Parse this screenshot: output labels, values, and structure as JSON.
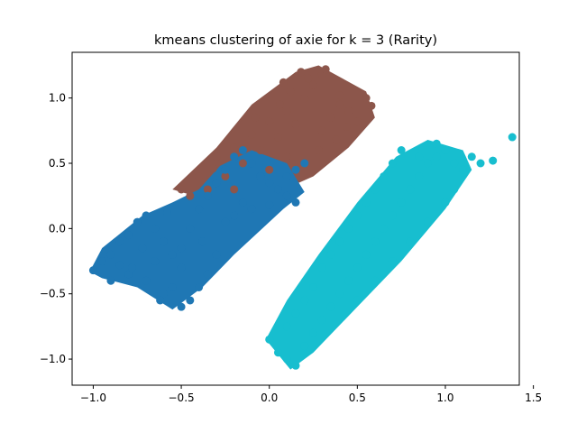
{
  "chart_data": {
    "type": "scatter",
    "title": "kmeans clustering of axie for k = 3 (Rarity)",
    "xlabel": "",
    "ylabel": "",
    "xlim": [
      -1.12,
      1.42
    ],
    "ylim": [
      -1.2,
      1.35
    ],
    "xticks": [
      -1.0,
      -0.5,
      0.0,
      0.5,
      1.0,
      1.5
    ],
    "xtick_labels": [
      "−1.0",
      "−0.5",
      "0.0",
      "0.5",
      "1.0",
      "1.5"
    ],
    "yticks": [
      -1.0,
      -0.5,
      0.0,
      0.5,
      1.0
    ],
    "ytick_labels": [
      "−1.0",
      "−0.5",
      "0.0",
      "0.5",
      "1.0"
    ],
    "grid": false,
    "legend": "none",
    "series": [
      {
        "color": "#8c564b",
        "cluster": 1,
        "points": [
          [
            -0.3,
            0.55
          ],
          [
            -0.2,
            0.62
          ],
          [
            -0.1,
            0.72
          ],
          [
            0.0,
            0.82
          ],
          [
            0.1,
            0.9
          ],
          [
            -0.25,
            0.4
          ],
          [
            -0.15,
            0.5
          ],
          [
            -0.05,
            0.6
          ],
          [
            0.05,
            0.7
          ],
          [
            0.15,
            0.8
          ],
          [
            -0.35,
            0.3
          ],
          [
            -0.45,
            0.25
          ],
          [
            0.2,
            1.0
          ],
          [
            0.25,
            1.1
          ],
          [
            0.3,
            0.75
          ],
          [
            0.35,
            0.85
          ],
          [
            0.4,
            0.95
          ],
          [
            0.45,
            0.9
          ],
          [
            0.5,
            0.82
          ],
          [
            0.55,
            1.0
          ],
          [
            0.18,
            1.2
          ],
          [
            0.22,
            1.15
          ],
          [
            0.12,
            1.05
          ],
          [
            0.3,
            1.18
          ],
          [
            0.4,
            1.02
          ],
          [
            -0.4,
            0.4
          ],
          [
            -0.2,
            0.3
          ],
          [
            0.0,
            0.45
          ],
          [
            0.1,
            0.55
          ],
          [
            0.28,
            0.6
          ],
          [
            0.38,
            0.68
          ],
          [
            0.48,
            0.72
          ],
          [
            0.58,
            0.94
          ],
          [
            -0.5,
            0.3
          ],
          [
            -0.32,
            0.46
          ],
          [
            0.06,
            0.95
          ],
          [
            -0.08,
            0.85
          ],
          [
            0.32,
            1.22
          ],
          [
            0.08,
            1.12
          ],
          [
            0.44,
            0.78
          ]
        ]
      },
      {
        "color": "#1f77b4",
        "cluster": 2,
        "points": [
          [
            -1.0,
            -0.32
          ],
          [
            -0.95,
            -0.25
          ],
          [
            -0.9,
            -0.2
          ],
          [
            -0.85,
            -0.1
          ],
          [
            -0.8,
            -0.05
          ],
          [
            -0.75,
            0.05
          ],
          [
            -0.7,
            0.1
          ],
          [
            -0.65,
            0.0
          ],
          [
            -0.6,
            -0.1
          ],
          [
            -0.55,
            -0.2
          ],
          [
            -0.5,
            -0.3
          ],
          [
            -0.55,
            -0.45
          ],
          [
            -0.5,
            -0.6
          ],
          [
            -0.6,
            -0.5
          ],
          [
            -0.7,
            -0.4
          ],
          [
            -0.8,
            -0.35
          ],
          [
            -0.9,
            -0.4
          ],
          [
            -0.45,
            0.0
          ],
          [
            -0.4,
            0.15
          ],
          [
            -0.35,
            0.25
          ],
          [
            -0.3,
            0.35
          ],
          [
            -0.25,
            0.45
          ],
          [
            -0.2,
            0.55
          ],
          [
            -0.15,
            0.6
          ],
          [
            -0.1,
            0.5
          ],
          [
            -0.05,
            0.4
          ],
          [
            0.0,
            0.35
          ],
          [
            0.05,
            0.3
          ],
          [
            0.1,
            0.25
          ],
          [
            0.15,
            0.2
          ],
          [
            -0.3,
            -0.2
          ],
          [
            -0.35,
            -0.35
          ],
          [
            -0.4,
            -0.45
          ],
          [
            -0.45,
            -0.55
          ],
          [
            -0.5,
            -0.15
          ],
          [
            -0.25,
            0.05
          ],
          [
            -0.2,
            0.1
          ],
          [
            -0.15,
            0.2
          ],
          [
            -0.1,
            0.15
          ],
          [
            0.2,
            0.5
          ],
          [
            0.15,
            0.45
          ],
          [
            0.1,
            0.4
          ],
          [
            0.0,
            0.18
          ],
          [
            -0.65,
            -0.25
          ],
          [
            -0.72,
            -0.15
          ],
          [
            -0.58,
            0.12
          ],
          [
            -0.85,
            -0.28
          ],
          [
            -0.78,
            -0.3
          ],
          [
            -0.62,
            -0.55
          ],
          [
            -0.38,
            -0.1
          ]
        ]
      },
      {
        "color": "#17becf",
        "cluster": 3,
        "points": [
          [
            0.0,
            -0.85
          ],
          [
            0.05,
            -0.95
          ],
          [
            0.1,
            -1.0
          ],
          [
            0.15,
            -1.05
          ],
          [
            0.2,
            -0.9
          ],
          [
            0.25,
            -0.8
          ],
          [
            0.3,
            -0.7
          ],
          [
            0.35,
            -0.6
          ],
          [
            0.4,
            -0.5
          ],
          [
            0.45,
            -0.4
          ],
          [
            0.5,
            -0.3
          ],
          [
            0.55,
            -0.2
          ],
          [
            0.6,
            -0.1
          ],
          [
            0.65,
            0.0
          ],
          [
            0.7,
            0.1
          ],
          [
            0.75,
            0.2
          ],
          [
            0.8,
            0.3
          ],
          [
            0.85,
            0.4
          ],
          [
            0.9,
            0.5
          ],
          [
            0.95,
            0.55
          ],
          [
            1.0,
            0.6
          ],
          [
            1.05,
            0.5
          ],
          [
            1.1,
            0.45
          ],
          [
            1.15,
            0.55
          ],
          [
            1.2,
            0.5
          ],
          [
            1.27,
            0.52
          ],
          [
            1.38,
            0.7
          ],
          [
            0.3,
            -0.3
          ],
          [
            0.35,
            -0.2
          ],
          [
            0.4,
            -0.1
          ],
          [
            0.45,
            0.0
          ],
          [
            0.5,
            0.1
          ],
          [
            0.55,
            0.2
          ],
          [
            0.6,
            0.3
          ],
          [
            0.65,
            0.4
          ],
          [
            0.7,
            0.5
          ],
          [
            0.75,
            0.6
          ],
          [
            0.25,
            -0.45
          ],
          [
            0.2,
            -0.55
          ],
          [
            0.15,
            -0.65
          ],
          [
            0.1,
            -0.75
          ],
          [
            0.5,
            -0.55
          ],
          [
            0.6,
            -0.4
          ],
          [
            0.7,
            -0.25
          ],
          [
            0.8,
            -0.1
          ],
          [
            0.9,
            0.05
          ],
          [
            1.0,
            0.2
          ],
          [
            1.05,
            0.3
          ],
          [
            0.85,
            0.55
          ],
          [
            0.95,
            0.65
          ]
        ]
      }
    ]
  }
}
